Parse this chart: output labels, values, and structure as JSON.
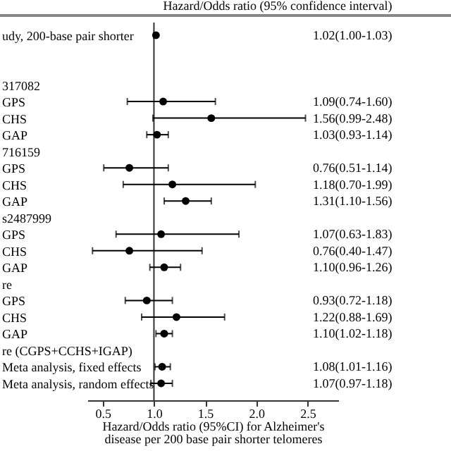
{
  "chart_data": {
    "type": "scatter",
    "orientation": "horizontal",
    "subtitle": "Hazard/Odds ratio (95% confidence interval)",
    "xlabel": "Hazard/Odds ratio (95%CI) for Alzheimer's\ndisease per 200 base pair shorter telomeres",
    "categories": [
      "udy, 200-base pair shorter",
      null,
      null,
      "317082",
      "GPS",
      "CHS",
      "GAP",
      "716159",
      "GPS",
      "CHS",
      "GAP",
      "s2487999",
      "GPS",
      "CHS",
      "GAP",
      "re",
      "GPS",
      "CHS",
      "GAP",
      "re (CGPS+CCHS+IGAP)",
      "Meta analysis, fixed effects",
      "Meta analysis, random effects"
    ],
    "values": [
      1.02,
      null,
      null,
      null,
      1.09,
      1.56,
      1.03,
      null,
      0.76,
      1.18,
      1.31,
      null,
      1.07,
      0.76,
      1.1,
      null,
      0.93,
      1.22,
      1.1,
      null,
      1.08,
      1.07
    ],
    "errors": [
      [
        1.0,
        1.03
      ],
      null,
      null,
      null,
      [
        0.74,
        1.6
      ],
      [
        0.99,
        2.48
      ],
      [
        0.93,
        1.14
      ],
      null,
      [
        0.51,
        1.14
      ],
      [
        0.7,
        1.99
      ],
      [
        1.1,
        1.56
      ],
      null,
      [
        0.63,
        1.83
      ],
      [
        0.4,
        1.47
      ],
      [
        0.96,
        1.26
      ],
      null,
      [
        0.72,
        1.18
      ],
      [
        0.88,
        1.69
      ],
      [
        1.02,
        1.18
      ],
      null,
      [
        1.01,
        1.16
      ],
      [
        0.97,
        1.18
      ]
    ],
    "value_labels": [
      "1.02(1.00-1.03)",
      null,
      null,
      null,
      "1.09(0.74-1.60)",
      "1.56(0.99-2.48)",
      "1.03(0.93-1.14)",
      null,
      "0.76(0.51-1.14)",
      "1.18(0.70-1.99)",
      "1.31(1.10-1.56)",
      null,
      "1.07(0.63-1.83)",
      "0.76(0.40-1.47)",
      "1.10(0.96-1.26)",
      null,
      "0.93(0.72-1.18)",
      "1.22(0.88-1.69)",
      "1.10(1.02-1.18)",
      null,
      "1.08(1.01-1.16)",
      "1.07(0.97-1.18)"
    ],
    "color": "#000000",
    "marker": "circle",
    "xlim": [
      0.35,
      2.8
    ],
    "xticks": [
      0.5,
      {
        "value": 1,
        "label": "1.0"
      },
      1.5,
      {
        "value": 2,
        "label": "2.0"
      },
      2.5
    ],
    "ref_lines": [
      {
        "axis": "x",
        "value": 1.0,
        "color": "#333333"
      }
    ],
    "grid": false
  }
}
